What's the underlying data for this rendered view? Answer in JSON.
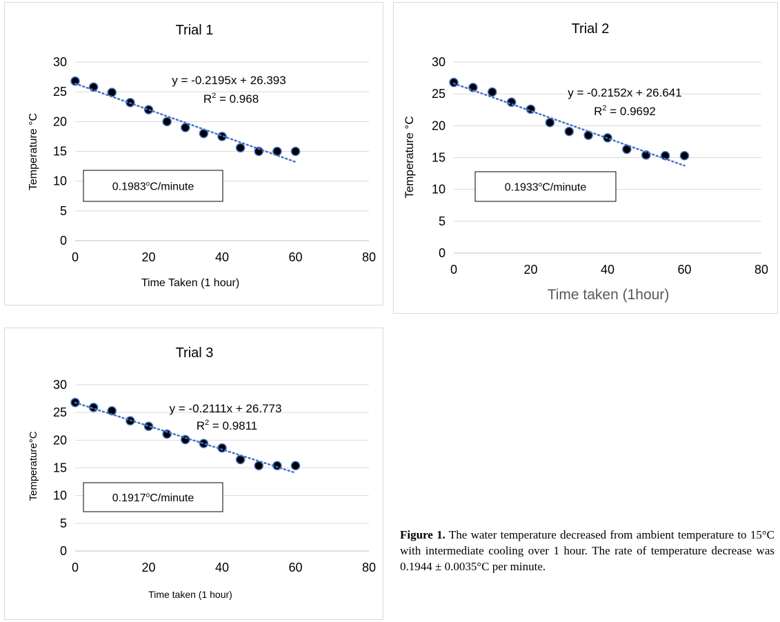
{
  "charts_meta": [
    "p1",
    "p2",
    "p3"
  ],
  "chart_data": [
    {
      "type": "scatter",
      "title": "Trial 1",
      "xlabel": "Time Taken (1 hour)",
      "ylabel": "Temperature °C",
      "xlim": [
        0,
        80
      ],
      "ylim": [
        0,
        30
      ],
      "xticks": [
        0,
        20,
        40,
        60,
        80
      ],
      "yticks": [
        0,
        5,
        10,
        15,
        20,
        25,
        30
      ],
      "grid": "horizontal",
      "x": [
        0,
        5,
        10,
        15,
        20,
        25,
        30,
        35,
        40,
        45,
        50,
        55,
        60
      ],
      "y": [
        26.8,
        25.8,
        24.9,
        23.2,
        22.0,
        20.0,
        19.0,
        18.0,
        17.5,
        15.6,
        15.0,
        15.0,
        15.0
      ],
      "trendline": {
        "slope": -0.2195,
        "intercept": 26.393
      },
      "equation": "y = -0.2195x + 26.393",
      "r2_prefix": "R",
      "r2_sup": "2",
      "r2_value": " = 0.968",
      "rate_box": {
        "number": "0.1983",
        "sup": "o",
        "unit": "C/minute"
      },
      "colors": {
        "marker": "#000000",
        "marker_edge": "#4472c4",
        "trend": "#4472c4",
        "grid": "#d9d9d9"
      }
    },
    {
      "type": "scatter",
      "title": "Trial 2",
      "xlabel": "Time taken (1hour)",
      "ylabel": "Temperature °C",
      "xlim": [
        0,
        80
      ],
      "ylim": [
        0,
        30
      ],
      "xticks": [
        0,
        20,
        40,
        60,
        80
      ],
      "yticks": [
        0,
        5,
        10,
        15,
        20,
        25,
        30
      ],
      "grid": "horizontal",
      "x": [
        0,
        5,
        10,
        15,
        20,
        25,
        30,
        35,
        40,
        45,
        50,
        55,
        60
      ],
      "y": [
        26.8,
        26.0,
        25.3,
        23.7,
        22.6,
        20.5,
        19.1,
        18.5,
        18.1,
        16.3,
        15.4,
        15.3,
        15.3
      ],
      "trendline": {
        "slope": -0.2152,
        "intercept": 26.641
      },
      "equation": "y = -0.2152x + 26.641",
      "r2_prefix": "R",
      "r2_sup": "2",
      "r2_value": " = 0.9692",
      "rate_box": {
        "number": "0.1933",
        "sup": "o",
        "unit": "C/minute"
      },
      "colors": {
        "marker": "#000000",
        "marker_edge": "#4472c4",
        "trend": "#4472c4",
        "grid": "#d9d9d9"
      }
    },
    {
      "type": "scatter",
      "title": "Trial 3",
      "xlabel": "Time taken (1 hour)",
      "ylabel": "Temperature°C",
      "xlim": [
        0,
        80
      ],
      "ylim": [
        0,
        30
      ],
      "xticks": [
        0,
        20,
        40,
        60,
        80
      ],
      "yticks": [
        0,
        5,
        10,
        15,
        20,
        25,
        30
      ],
      "grid": "horizontal",
      "x": [
        0,
        5,
        10,
        15,
        20,
        25,
        30,
        35,
        40,
        45,
        50,
        55,
        60
      ],
      "y": [
        26.8,
        25.9,
        25.3,
        23.5,
        22.5,
        21.1,
        20.1,
        19.4,
        18.6,
        16.5,
        15.4,
        15.4,
        15.4
      ],
      "trendline": {
        "slope": -0.2111,
        "intercept": 26.773
      },
      "equation": "y = -0.2111x + 26.773",
      "r2_prefix": "R",
      "r2_sup": "2",
      "r2_value": " = 0.9811",
      "rate_box": {
        "number": "0.1917",
        "sup": "o",
        "unit": "C/minute"
      },
      "colors": {
        "marker": "#000000",
        "marker_edge": "#4472c4",
        "trend": "#4472c4",
        "grid": "#d9d9d9"
      }
    }
  ],
  "caption": {
    "label": "Figure 1.",
    "text": " The water temperature decreased from ambient temperature to 15°C with intermediate cooling over 1 hour. The rate of temperature decrease was 0.1944 ± 0.0035°C per minute."
  }
}
